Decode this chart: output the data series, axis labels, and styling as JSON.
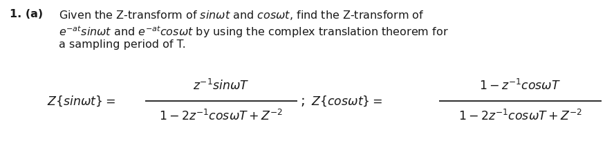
{
  "background_color": "#ffffff",
  "figsize": [
    8.88,
    2.14
  ],
  "dpi": 100,
  "text_color": "#1a1a1a",
  "para_fontsize": 11.5,
  "formula_fontsize": 12.5,
  "num_label": "1. (a)",
  "line1": "Given the Z-transform of $\\mathit{sin\\omega t}$ and $\\mathit{cos\\omega t}$, find the Z-transform of",
  "line2": "$e^{-at}\\mathit{sin\\omega t}$ and $e^{-at}\\mathit{cos\\omega t}$ by using the complex translation theorem for",
  "line3": "a sampling period of T.",
  "lhs1": "$Z\\{sin\\omega t\\} =$",
  "num1": "$z^{-1}sin\\omega T$",
  "den1": "$1 - 2z^{-1}cos\\omega T + Z^{-2}$",
  "sep": ";",
  "lhs2": "$Z\\{cos\\omega t\\} =$",
  "num2": "$1 - z^{-1}cos\\omega T$",
  "den2": "$1 - 2z^{-1}cos\\omega T + Z^{-2}$"
}
